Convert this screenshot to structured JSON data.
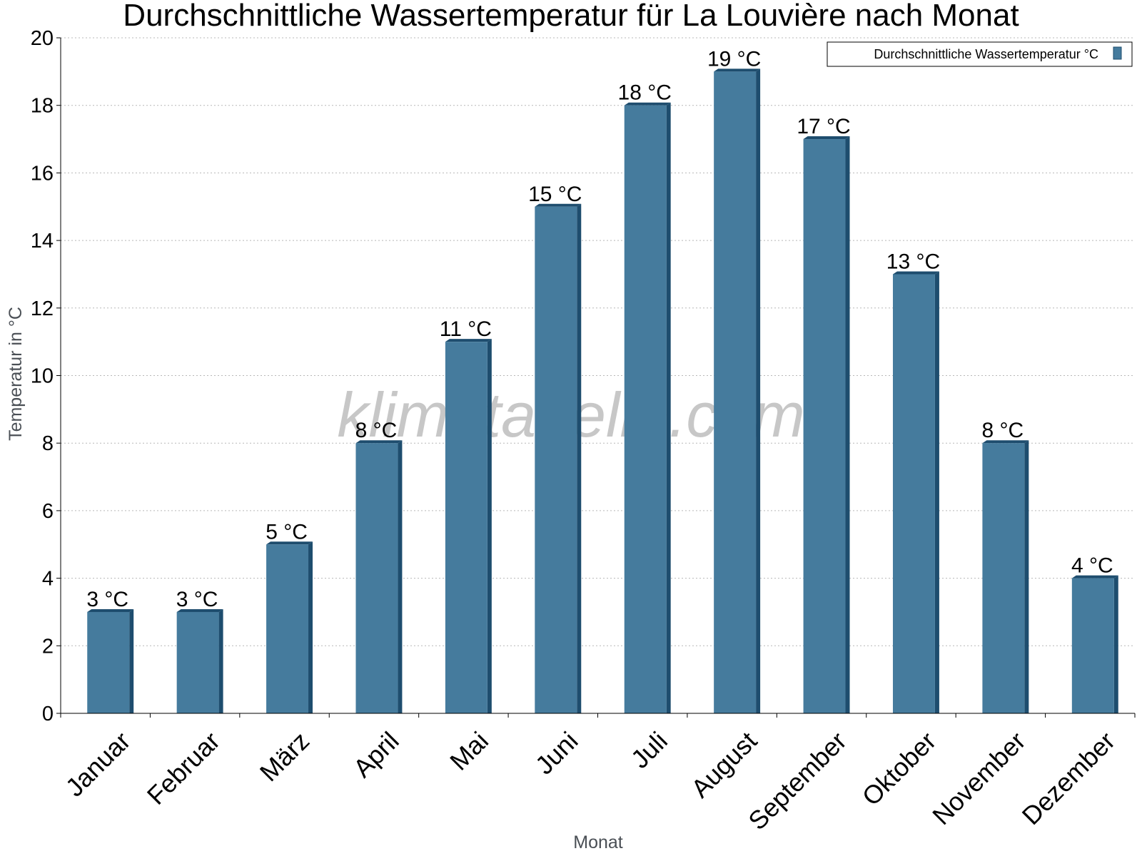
{
  "chart_data": {
    "type": "bar",
    "title": "Durchschnittliche Wassertemperatur für La Louvière nach Monat",
    "xlabel": "Monat",
    "ylabel": "Temperatur in °C",
    "categories": [
      "Januar",
      "Februar",
      "März",
      "April",
      "Mai",
      "Juni",
      "Juli",
      "August",
      "September",
      "Oktober",
      "November",
      "Dezember"
    ],
    "series": [
      {
        "name": "Durchschnittliche Wassertemperatur °C",
        "values": [
          3,
          3,
          5,
          8,
          11,
          15,
          18,
          19,
          17,
          13,
          8,
          4
        ],
        "data_labels": [
          "3 °C",
          "3 °C",
          "5 °C",
          "8 °C",
          "11 °C",
          "15 °C",
          "18 °C",
          "19 °C",
          "17 °C",
          "13 °C",
          "8 °C",
          "4 °C"
        ]
      }
    ],
    "ylim": [
      0,
      20
    ],
    "yticks": [
      0,
      2,
      4,
      6,
      8,
      10,
      12,
      14,
      16,
      18,
      20
    ],
    "grid": true,
    "legend_position": "top-right",
    "colors": {
      "bar": "#457b9d",
      "bar_side": "#1e4d6e"
    }
  },
  "watermark": "klimatabelle.com"
}
